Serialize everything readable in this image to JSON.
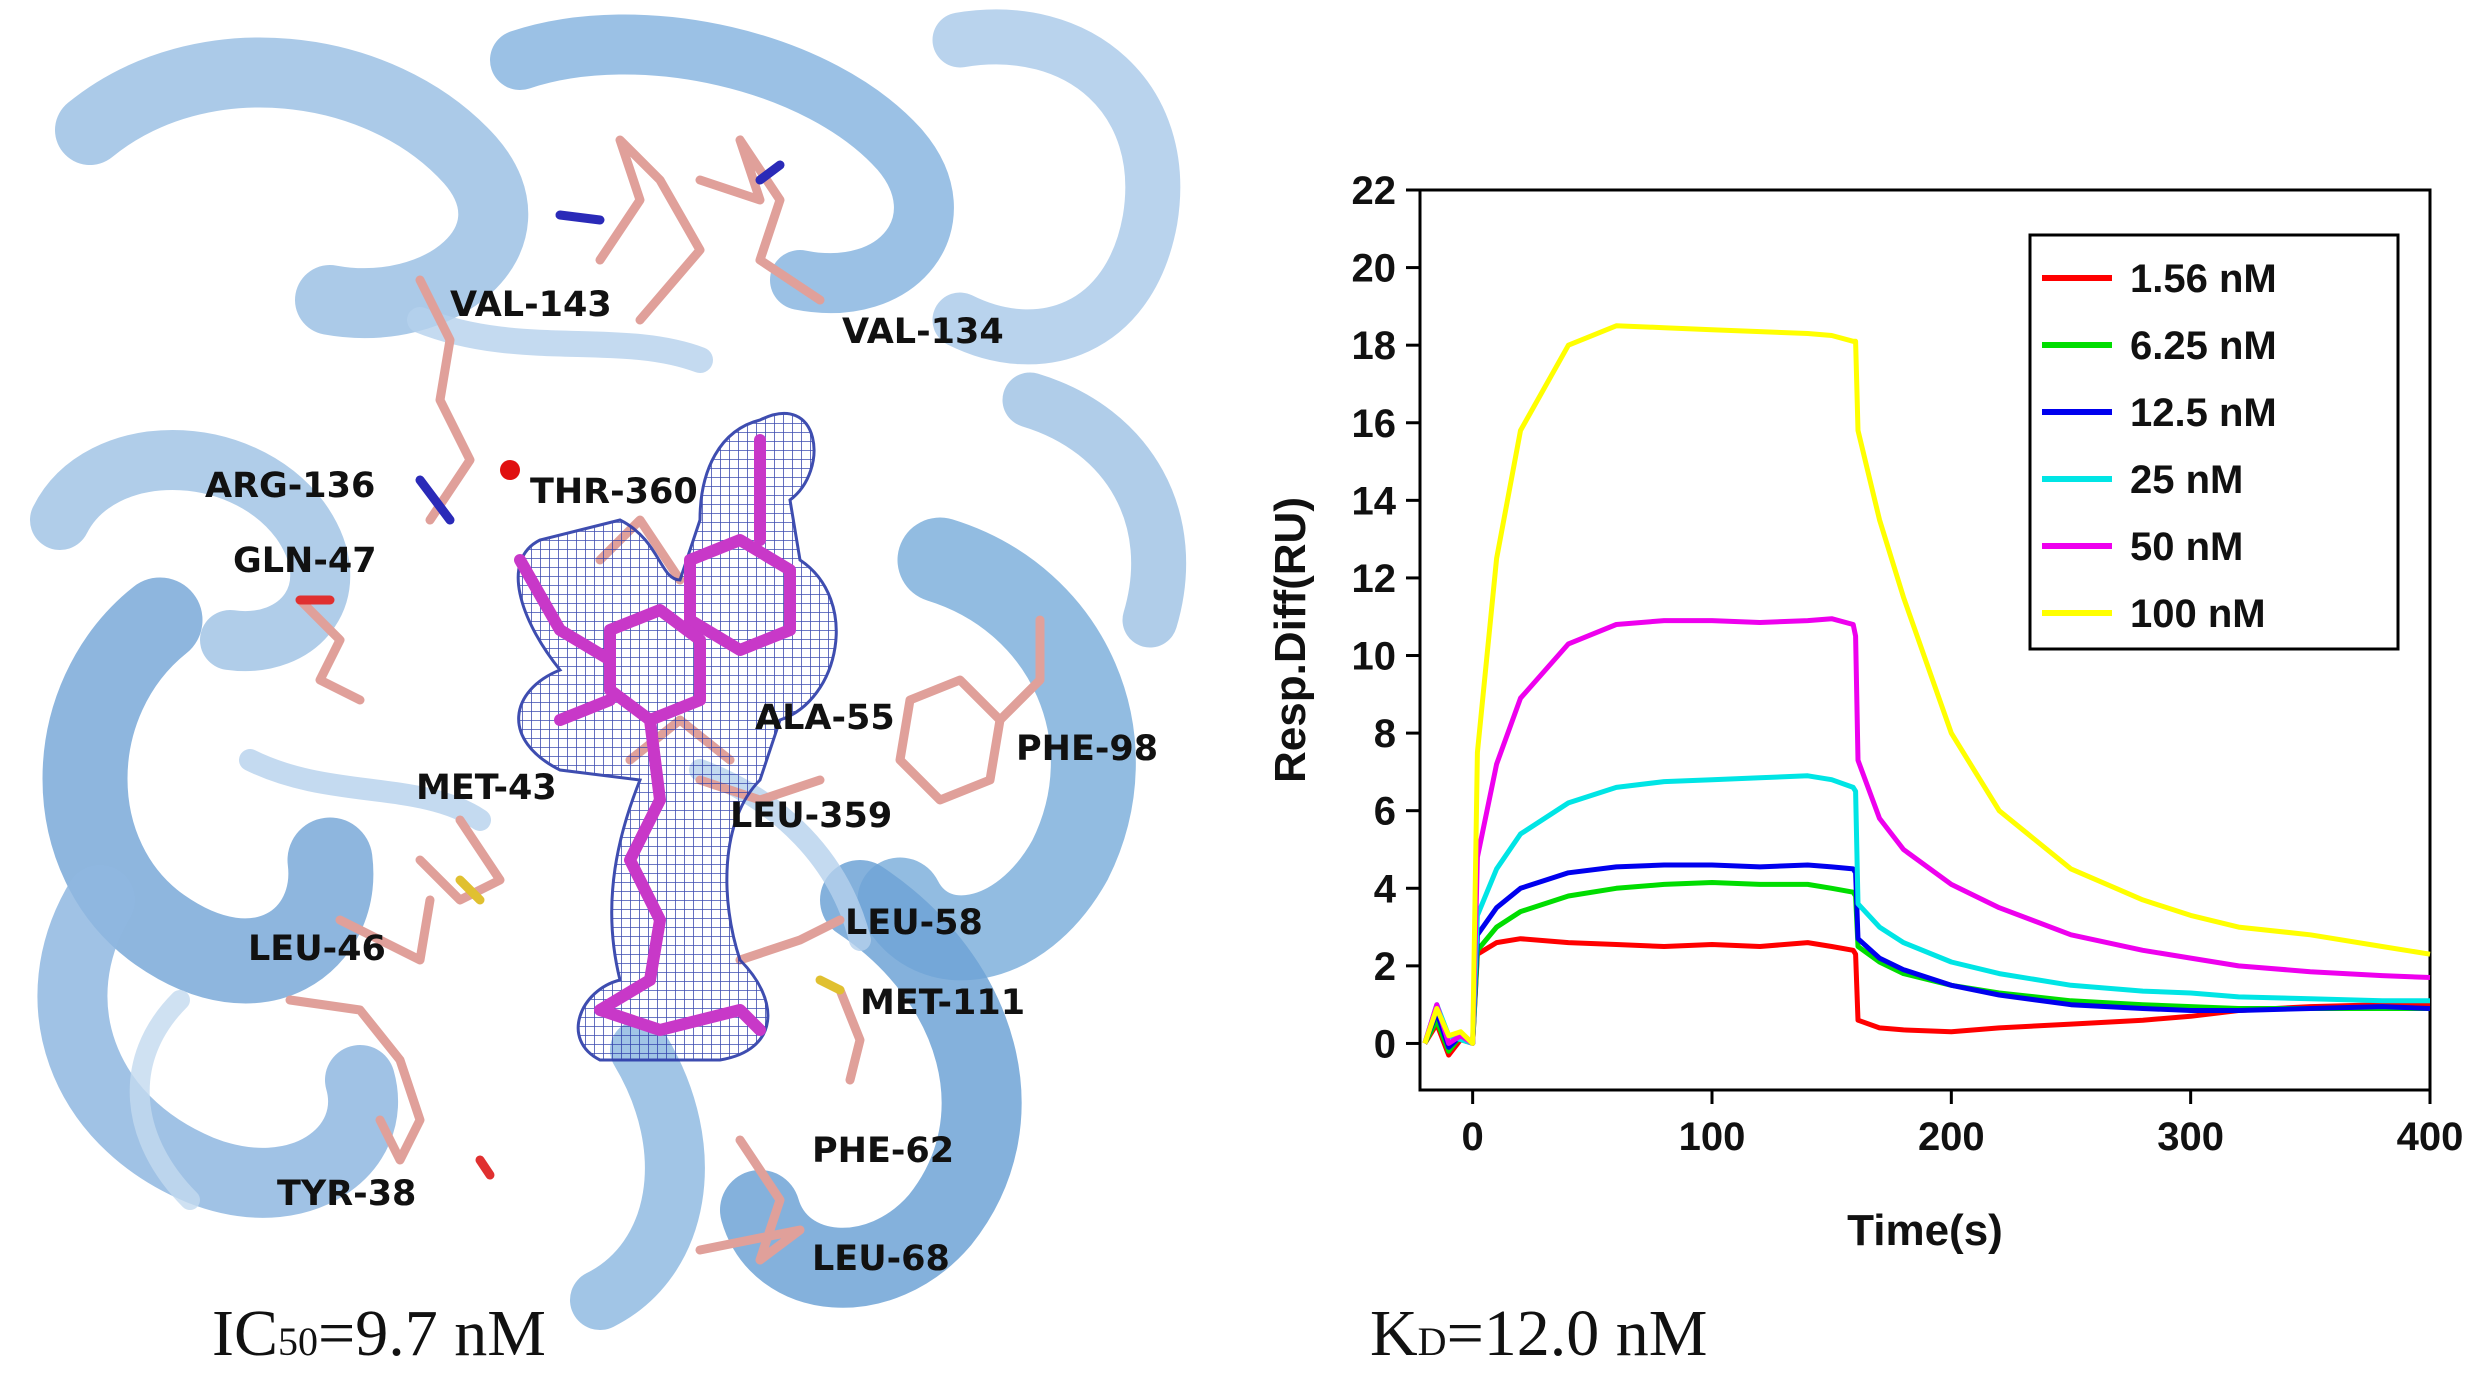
{
  "structure_panel": {
    "residues": [
      "VAL-143",
      "VAL-134",
      "ARG-136",
      "THR-360",
      "GLN-47",
      "ALA-55",
      "PHE-98",
      "MET-43",
      "LEU-359",
      "LEU-46",
      "LEU-58",
      "MET-111",
      "TYR-38",
      "PHE-62",
      "LEU-68"
    ],
    "caption_main": "IC",
    "caption_sub": "50",
    "caption_value": "=9.7 nM",
    "colors": {
      "protein": "#5b9bd5",
      "sidechain": "#e0a09a",
      "ligand": "#c838c8",
      "density_mesh": "#2a3aa8"
    }
  },
  "caption_right": {
    "main": "K",
    "sub": "D",
    "value": "=12.0 nM"
  },
  "chart_data": {
    "type": "line",
    "xlabel": "Time(s)",
    "ylabel": "Resp.Diff(RU)",
    "xlim": [
      -22,
      400
    ],
    "ylim": [
      -1.2,
      22
    ],
    "xticks": [
      0,
      100,
      200,
      300,
      400
    ],
    "yticks": [
      0,
      2,
      4,
      6,
      8,
      10,
      12,
      14,
      16,
      18,
      20,
      22
    ],
    "grid": false,
    "legend_position": "top-right",
    "series": [
      {
        "name": "1.56 nM",
        "color": "#ff0000",
        "x": [
          -20,
          -15,
          -10,
          -5,
          0,
          2,
          10,
          20,
          40,
          60,
          80,
          100,
          120,
          140,
          150,
          159,
          160,
          161,
          170,
          180,
          200,
          220,
          250,
          280,
          300,
          320,
          350,
          380,
          400
        ],
        "y": [
          0,
          0.5,
          -0.3,
          0.1,
          0,
          2.3,
          2.6,
          2.7,
          2.6,
          2.55,
          2.5,
          2.55,
          2.5,
          2.6,
          2.5,
          2.4,
          2.3,
          0.6,
          0.4,
          0.35,
          0.3,
          0.4,
          0.5,
          0.6,
          0.7,
          0.85,
          0.95,
          1.0,
          1.0
        ]
      },
      {
        "name": "6.25 nM",
        "color": "#00dd00",
        "x": [
          -20,
          -15,
          -10,
          -5,
          0,
          2,
          10,
          20,
          40,
          60,
          80,
          100,
          120,
          140,
          150,
          159,
          160,
          161,
          170,
          180,
          200,
          220,
          250,
          280,
          300,
          320,
          350,
          380,
          400
        ],
        "y": [
          0,
          0.6,
          -0.2,
          0.2,
          0,
          2.4,
          3.0,
          3.4,
          3.8,
          4.0,
          4.1,
          4.15,
          4.1,
          4.1,
          4.0,
          3.9,
          3.8,
          2.5,
          2.1,
          1.8,
          1.5,
          1.3,
          1.1,
          1.0,
          0.95,
          0.9,
          0.9,
          0.9,
          0.9
        ]
      },
      {
        "name": "12.5 nM",
        "color": "#0000ee",
        "x": [
          -20,
          -15,
          -10,
          -5,
          0,
          2,
          10,
          20,
          40,
          60,
          80,
          100,
          120,
          140,
          150,
          159,
          160,
          161,
          170,
          180,
          200,
          220,
          250,
          280,
          300,
          320,
          350,
          380,
          400
        ],
        "y": [
          0,
          0.8,
          -0.1,
          0.2,
          0,
          2.8,
          3.5,
          4.0,
          4.4,
          4.55,
          4.6,
          4.6,
          4.55,
          4.6,
          4.55,
          4.5,
          4.4,
          2.7,
          2.2,
          1.9,
          1.5,
          1.25,
          1.0,
          0.9,
          0.85,
          0.85,
          0.9,
          0.95,
          0.9
        ]
      },
      {
        "name": "25 nM",
        "color": "#00e5e5",
        "x": [
          -20,
          -15,
          -10,
          -5,
          0,
          2,
          10,
          20,
          40,
          60,
          80,
          100,
          120,
          140,
          150,
          159,
          160,
          161,
          170,
          180,
          200,
          220,
          250,
          280,
          300,
          320,
          350,
          380,
          400
        ],
        "y": [
          0,
          1.0,
          0.2,
          0.1,
          0,
          3.3,
          4.5,
          5.4,
          6.2,
          6.6,
          6.75,
          6.8,
          6.85,
          6.9,
          6.8,
          6.6,
          6.5,
          3.6,
          3.0,
          2.6,
          2.1,
          1.8,
          1.5,
          1.35,
          1.3,
          1.2,
          1.15,
          1.1,
          1.1
        ]
      },
      {
        "name": "50 nM",
        "color": "#ee00ee",
        "x": [
          -20,
          -15,
          -10,
          -5,
          0,
          2,
          10,
          20,
          40,
          60,
          80,
          100,
          120,
          140,
          150,
          159,
          160,
          161,
          170,
          180,
          200,
          220,
          250,
          280,
          300,
          320,
          350,
          380,
          400
        ],
        "y": [
          0,
          1.0,
          0.0,
          0.2,
          0,
          4.8,
          7.2,
          8.9,
          10.3,
          10.8,
          10.9,
          10.9,
          10.85,
          10.9,
          10.95,
          10.8,
          10.5,
          7.3,
          5.8,
          5.0,
          4.1,
          3.5,
          2.8,
          2.4,
          2.2,
          2.0,
          1.85,
          1.75,
          1.7
        ]
      },
      {
        "name": "100 nM",
        "color": "#ffff00",
        "x": [
          -20,
          -15,
          -10,
          -5,
          0,
          2,
          10,
          20,
          40,
          60,
          80,
          100,
          120,
          140,
          150,
          159,
          160,
          161,
          170,
          180,
          200,
          220,
          250,
          280,
          300,
          320,
          350,
          380,
          400
        ],
        "y": [
          0,
          0.9,
          0.2,
          0.3,
          0,
          7.5,
          12.5,
          15.8,
          18.0,
          18.5,
          18.45,
          18.4,
          18.35,
          18.3,
          18.25,
          18.1,
          18.1,
          15.8,
          13.5,
          11.5,
          8.0,
          6.0,
          4.5,
          3.7,
          3.3,
          3.0,
          2.8,
          2.5,
          2.3
        ]
      }
    ]
  }
}
